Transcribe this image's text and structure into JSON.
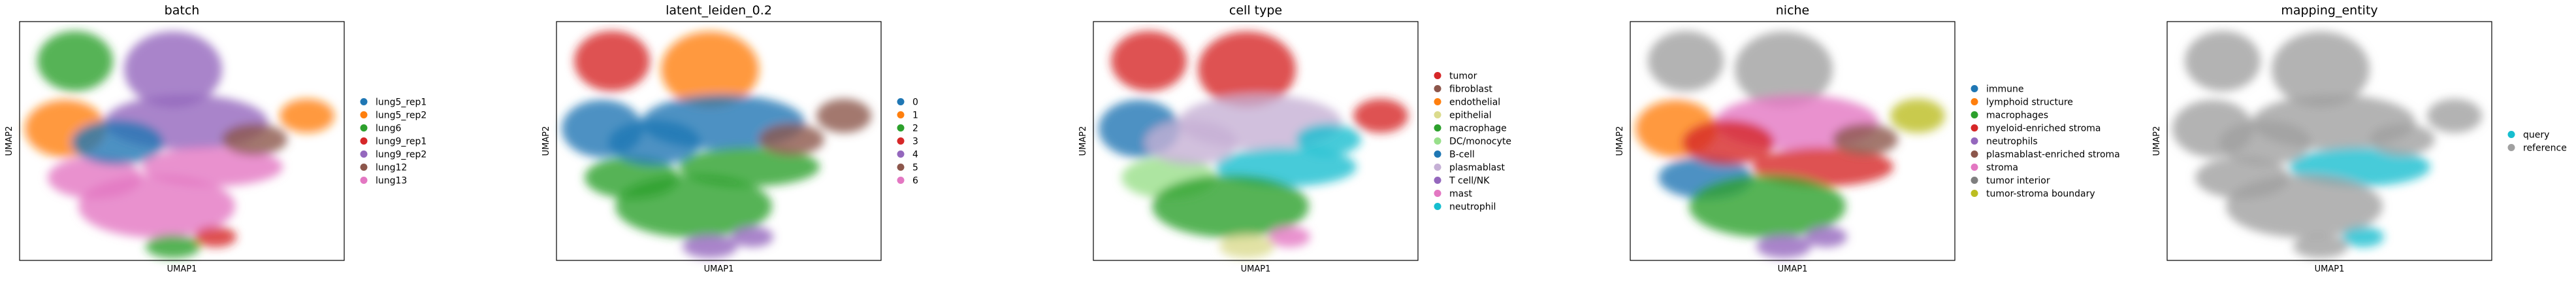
{
  "figure": {
    "xlabel": "UMAP1",
    "ylabel": "UMAP2"
  },
  "chart_data": [
    {
      "type": "scatter",
      "title": "batch",
      "xlabel": "UMAP1",
      "ylabel": "UMAP2",
      "grid": false,
      "legend_placement": "right",
      "legend": [
        {
          "label": "lung5_rep1",
          "color": "#1f77b4"
        },
        {
          "label": "lung5_rep2",
          "color": "#ff7f0e"
        },
        {
          "label": "lung6",
          "color": "#2ca02c"
        },
        {
          "label": "lung9_rep1",
          "color": "#d62728"
        },
        {
          "label": "lung9_rep2",
          "color": "#9467bd"
        },
        {
          "label": "lung12",
          "color": "#8c564b"
        },
        {
          "label": "lung13",
          "color": "#e377c2"
        }
      ]
    },
    {
      "type": "scatter",
      "title": "latent_leiden_0.2",
      "xlabel": "UMAP1",
      "ylabel": "UMAP2",
      "grid": false,
      "legend_placement": "right",
      "legend": [
        {
          "label": "0",
          "color": "#1f77b4"
        },
        {
          "label": "1",
          "color": "#ff7f0e"
        },
        {
          "label": "2",
          "color": "#2ca02c"
        },
        {
          "label": "3",
          "color": "#d62728"
        },
        {
          "label": "4",
          "color": "#9467bd"
        },
        {
          "label": "5",
          "color": "#8c564b"
        },
        {
          "label": "6",
          "color": "#e377c2"
        }
      ]
    },
    {
      "type": "scatter",
      "title": "cell type",
      "xlabel": "UMAP1",
      "ylabel": "UMAP2",
      "grid": false,
      "legend_placement": "right",
      "legend": [
        {
          "label": "tumor",
          "color": "#d62728"
        },
        {
          "label": "fibroblast",
          "color": "#8c564b"
        },
        {
          "label": "endothelial",
          "color": "#ff7f0e"
        },
        {
          "label": "epithelial",
          "color": "#dbdb8d"
        },
        {
          "label": "macrophage",
          "color": "#2ca02c"
        },
        {
          "label": "DC/monocyte",
          "color": "#98df8a"
        },
        {
          "label": "B-cell",
          "color": "#1f77b4"
        },
        {
          "label": "plasmablast",
          "color": "#c5b0d5"
        },
        {
          "label": "T cell/NK",
          "color": "#9467bd"
        },
        {
          "label": "mast",
          "color": "#e377c2"
        },
        {
          "label": "neutrophil",
          "color": "#17becf"
        }
      ]
    },
    {
      "type": "scatter",
      "title": "niche",
      "xlabel": "UMAP1",
      "ylabel": "UMAP2",
      "grid": false,
      "legend_placement": "right",
      "legend": [
        {
          "label": "immune",
          "color": "#1f77b4"
        },
        {
          "label": "lymphoid structure",
          "color": "#ff7f0e"
        },
        {
          "label": "macrophages",
          "color": "#2ca02c"
        },
        {
          "label": "myeloid-enriched stroma",
          "color": "#d62728"
        },
        {
          "label": "neutrophils",
          "color": "#9467bd"
        },
        {
          "label": "plasmablast-enriched stroma",
          "color": "#8c564b"
        },
        {
          "label": "stroma",
          "color": "#e377c2"
        },
        {
          "label": "tumor interior",
          "color": "#7f7f7f"
        },
        {
          "label": "tumor-stroma boundary",
          "color": "#bcbd22"
        }
      ]
    },
    {
      "type": "scatter",
      "title": "mapping_entity",
      "xlabel": "UMAP1",
      "ylabel": "UMAP2",
      "grid": false,
      "legend_placement": "right",
      "legend": [
        {
          "label": "query",
          "color": "#17becf"
        },
        {
          "label": "reference",
          "color": "#a0a0a0"
        }
      ]
    }
  ]
}
